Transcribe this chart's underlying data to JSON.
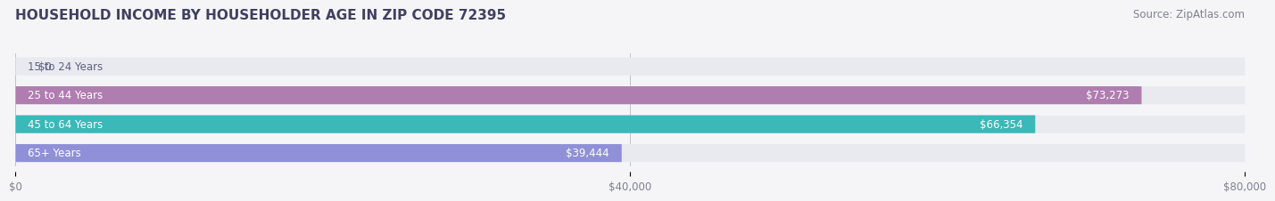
{
  "title": "HOUSEHOLD INCOME BY HOUSEHOLDER AGE IN ZIP CODE 72395",
  "source": "Source: ZipAtlas.com",
  "categories": [
    "15 to 24 Years",
    "25 to 44 Years",
    "45 to 64 Years",
    "65+ Years"
  ],
  "values": [
    0,
    73273,
    66354,
    39444
  ],
  "value_labels": [
    "$0",
    "$73,273",
    "$66,354",
    "$39,444"
  ],
  "bar_colors": [
    "#a8b8d8",
    "#b07db0",
    "#3bb8b8",
    "#9090d8"
  ],
  "bar_bg_color": "#e8eaf0",
  "xlim": [
    0,
    80000
  ],
  "xticks": [
    0,
    40000,
    80000
  ],
  "xtick_labels": [
    "$0",
    "$40,000",
    "$80,000"
  ],
  "title_color": "#404060",
  "title_fontsize": 11,
  "source_fontsize": 8.5,
  "label_fontsize": 8.5,
  "value_fontsize": 8.5,
  "bar_height": 0.62,
  "background_color": "#f5f5f8"
}
